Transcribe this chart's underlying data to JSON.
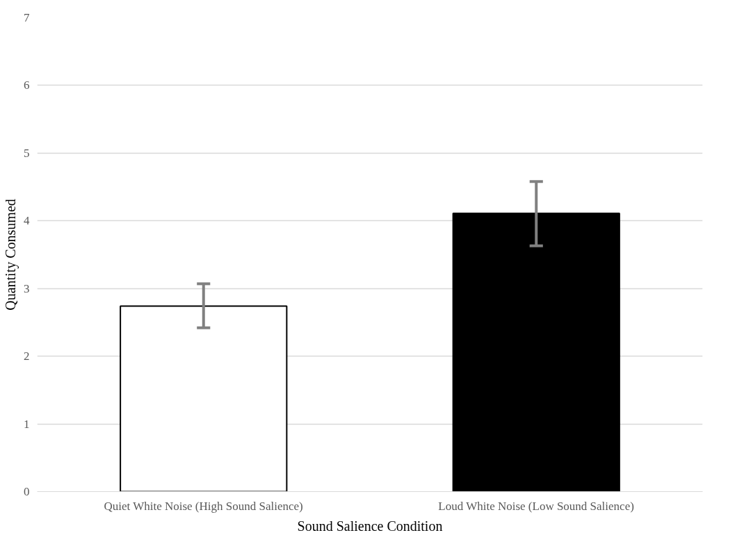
{
  "chart_data": {
    "type": "bar",
    "xlabel": "Sound Salience Condition",
    "ylabel": "Quantity Consumed",
    "categories": [
      "Quiet White Noise (High Sound Salience)",
      "Loud White Noise (Low Sound Salience)"
    ],
    "values": [
      2.74,
      4.11
    ],
    "colors": [
      "#ffffff",
      "#000000"
    ],
    "errors": [
      [
        2.42,
        3.07
      ],
      [
        3.63,
        4.58
      ]
    ],
    "ylim": [
      0,
      7
    ],
    "yticks": [
      0,
      1,
      2,
      3,
      4,
      5,
      6,
      7
    ],
    "grid": "y"
  }
}
